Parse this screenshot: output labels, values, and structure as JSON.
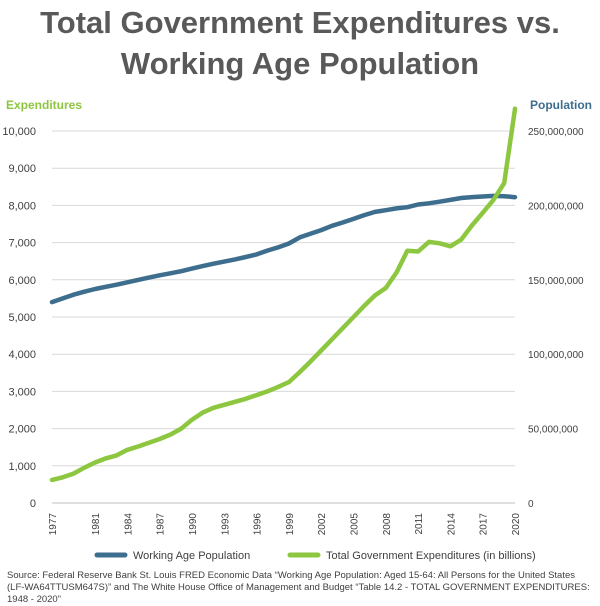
{
  "title_line1": "Total Government Expenditures vs.",
  "title_line2": "Working Age Population",
  "colors": {
    "population": "#3e6e8e",
    "expenditures": "#8dc63f",
    "title": "#595959",
    "grid": "#d9d9d9",
    "tick": "#404040"
  },
  "source": "Source: Federal Reserve Bank St. Louis FRED Economic Data “Working Age Population: Aged 15-64: All Persons for the United States (LF-WA64TTUSM647S)” and The White House Office of Management and Budget “Table 14.2 - TOTAL GOVERNMENT EXPENDITURES:  1948 - 2020”",
  "chart_data": {
    "type": "line",
    "left_axis_title": "Expenditures",
    "right_axis_title": "Population",
    "x": [
      1977,
      1978,
      1979,
      1980,
      1981,
      1982,
      1983,
      1984,
      1985,
      1986,
      1987,
      1988,
      1989,
      1990,
      1991,
      1992,
      1993,
      1994,
      1995,
      1996,
      1997,
      1998,
      1999,
      2000,
      2001,
      2002,
      2003,
      2004,
      2005,
      2006,
      2007,
      2008,
      2009,
      2010,
      2011,
      2012,
      2013,
      2014,
      2015,
      2016,
      2017,
      2018,
      2019,
      2020
    ],
    "x_tick_labels": [
      "1977",
      "1981",
      "1984",
      "1987",
      "1990",
      "1993",
      "1996",
      "1999",
      "2002",
      "2005",
      "2008",
      "2011",
      "2014",
      "2017",
      "2020"
    ],
    "x_ticks": [
      1977,
      1981,
      1984,
      1987,
      1990,
      1993,
      1996,
      1999,
      2002,
      2005,
      2008,
      2011,
      2014,
      2017,
      2020
    ],
    "ylim_left": [
      0,
      10000
    ],
    "y_ticks_left": [
      0,
      1000,
      2000,
      3000,
      4000,
      5000,
      6000,
      7000,
      8000,
      9000,
      10000
    ],
    "y_tick_labels_left": [
      "0",
      "1,000",
      "2,000",
      "3,000",
      "4,000",
      "5,000",
      "6,000",
      "7,000",
      "8,000",
      "9,000",
      "10,000"
    ],
    "ylim_right": [
      0,
      250000000
    ],
    "y_ticks_right": [
      0,
      50000000,
      100000000,
      150000000,
      200000000,
      250000000
    ],
    "y_tick_labels_right": [
      "0",
      "50,000,000",
      "100,000,000",
      "150,000,000",
      "200,000,000",
      "250,000,000"
    ],
    "grid": true,
    "legend_position": "bottom",
    "series": [
      {
        "name": "Working Age Population",
        "axis": "right",
        "color": "#3e6e8e",
        "values": [
          135000000,
          137500000,
          140000000,
          142000000,
          143800000,
          145300000,
          146700000,
          148300000,
          149900000,
          151500000,
          153000000,
          154400000,
          155800000,
          157500000,
          159200000,
          160800000,
          162200000,
          163700000,
          165300000,
          167100000,
          169600000,
          171800000,
          174400000,
          178500000,
          180900000,
          183400000,
          186300000,
          188500000,
          190900000,
          193500000,
          195600000,
          196800000,
          198000000,
          198800000,
          200600000,
          201400000,
          202500000,
          203700000,
          205000000,
          205600000,
          206000000,
          206400000,
          206200000,
          205500000
        ]
      },
      {
        "name": "Total Government Expenditures (in billions)",
        "axis": "left",
        "color": "#8dc63f",
        "values": [
          620,
          690,
          790,
          950,
          1090,
          1200,
          1280,
          1430,
          1520,
          1620,
          1720,
          1840,
          2000,
          2240,
          2430,
          2560,
          2640,
          2720,
          2800,
          2900,
          3000,
          3120,
          3250,
          3520,
          3800,
          4100,
          4400,
          4700,
          5000,
          5300,
          5580,
          5780,
          6200,
          6780,
          6760,
          7020,
          6980,
          6900,
          7080,
          7460,
          7800,
          8150,
          8600,
          10600
        ]
      }
    ]
  }
}
